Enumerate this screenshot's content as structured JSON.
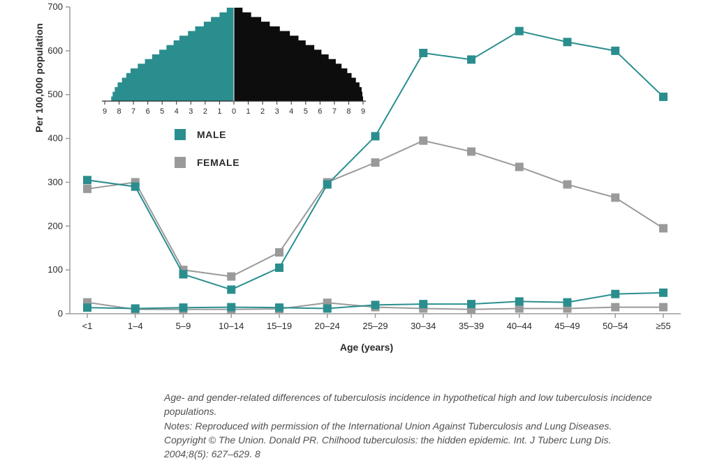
{
  "chart": {
    "type": "line",
    "ylabel": "Per 100,000 population",
    "xlabel": "Age (years)",
    "ylim": [
      0,
      700
    ],
    "ytick_step": 100,
    "categories": [
      "<1",
      "1–4",
      "5–9",
      "10–14",
      "15–19",
      "20–24",
      "25–29",
      "30–34",
      "35–39",
      "40–44",
      "45–49",
      "50–54",
      "≥55"
    ],
    "axis_color": "#9b9b9b",
    "tick_fontsize": 13,
    "label_fontsize": 14,
    "label_fontweight": 700,
    "marker_style": "square",
    "marker_size": 12,
    "line_width": 2,
    "background_color": "#ffffff",
    "series": {
      "male_high": {
        "color": "#2b8e8e",
        "label": "MALE",
        "values": [
          305,
          290,
          90,
          55,
          105,
          295,
          405,
          595,
          580,
          645,
          620,
          600,
          495
        ]
      },
      "female_high": {
        "color": "#9a9a9a",
        "label": "FEMALE",
        "values": [
          285,
          300,
          100,
          85,
          140,
          300,
          345,
          395,
          370,
          335,
          295,
          265,
          195
        ]
      },
      "male_low": {
        "color": "#2b8e8e",
        "values": [
          14,
          12,
          14,
          15,
          14,
          12,
          20,
          22,
          22,
          28,
          26,
          45,
          48
        ]
      },
      "female_low": {
        "color": "#9a9a9a",
        "values": [
          26,
          10,
          10,
          10,
          11,
          25,
          15,
          12,
          10,
          12,
          12,
          15,
          15
        ]
      }
    }
  },
  "legend": {
    "items": [
      {
        "label": "MALE",
        "color": "#2b8e8e"
      },
      {
        "label": "FEMALE",
        "color": "#9a9a9a"
      }
    ],
    "fontsize": 14,
    "fontweight": 700
  },
  "pyramid_inset": {
    "type": "population-pyramid",
    "left_color": "#2b8e8e",
    "right_color": "#0d0d0d",
    "axis_color": "#2a2a2a",
    "tick_labels": [
      9,
      8,
      7,
      6,
      5,
      4,
      3,
      2,
      1,
      0,
      1,
      2,
      3,
      4,
      5,
      6,
      7,
      8,
      9
    ],
    "left_bars": [
      0.5,
      1.0,
      1.6,
      2.1,
      2.7,
      3.2,
      3.8,
      4.2,
      4.7,
      5.2,
      5.7,
      6.2,
      6.7,
      7.2,
      7.5,
      7.8,
      8.1,
      8.3,
      8.45,
      8.55
    ],
    "right_bars": [
      0.6,
      1.2,
      1.9,
      2.5,
      3.2,
      3.9,
      4.5,
      5.0,
      5.6,
      6.1,
      6.6,
      7.1,
      7.5,
      7.9,
      8.2,
      8.5,
      8.75,
      8.9,
      8.95,
      9.0
    ],
    "maxval": 9
  },
  "caption": {
    "line1": "Age- and gender-related differences of tuberculosis incidence in hypothetical high and low tuberculosis incidence populations.",
    "line2": "Notes: Reproduced with permission of the International Union Against Tuberculosis and Lung Diseases.",
    "line3": "Copyright © The Union. Donald PR. Chilhood tuberculosis: the hidden epidemic. Int. J Tuberc Lung Dis. 2004;8(5): 627–629. 8"
  }
}
